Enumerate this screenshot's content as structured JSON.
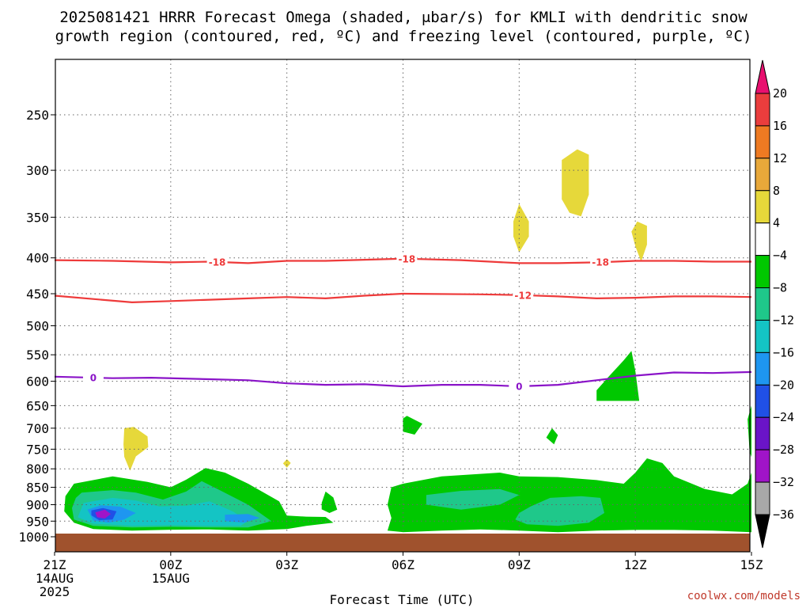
{
  "title_line1": "2025081421 HRRR Forecast Omega (shaded, μbar/s) for KMLI with dendritic snow",
  "title_line2": "growth region (contoured, red, ºC) and freezing level (contoured, purple, ºC)",
  "credit": "coolwx.com/models",
  "chart_data": {
    "type": "time-height cross section",
    "title": "2025081421 HRRR Forecast Omega (shaded, μbar/s) for KMLI with dendritic snow growth region (contoured, red, ºC) and freezing level (contoured, purple, ºC)",
    "xlabel": "Forecast Time (UTC)",
    "xlim": [
      0,
      18
    ],
    "x_ticks": [
      {
        "x": 0,
        "label": "21Z",
        "sub1": "14AUG",
        "sub2": "2025"
      },
      {
        "x": 3,
        "label": "00Z",
        "sub1": "15AUG",
        "sub2": ""
      },
      {
        "x": 6,
        "label": "03Z",
        "sub1": "",
        "sub2": ""
      },
      {
        "x": 9,
        "label": "06Z",
        "sub1": "",
        "sub2": ""
      },
      {
        "x": 12,
        "label": "09Z",
        "sub1": "",
        "sub2": ""
      },
      {
        "x": 15,
        "label": "12Z",
        "sub1": "",
        "sub2": ""
      },
      {
        "x": 18,
        "label": "15Z",
        "sub1": "",
        "sub2": ""
      }
    ],
    "y_ticks": [
      250,
      300,
      350,
      400,
      450,
      500,
      550,
      600,
      650,
      700,
      750,
      800,
      850,
      900,
      950,
      1000
    ],
    "grid": true,
    "surface_color": "#a0522d",
    "colorbar": {
      "labels": [
        "20",
        "16",
        "12",
        "8",
        "4",
        "−4",
        "−8",
        "−12",
        "−16",
        "−20",
        "−24",
        "−28",
        "−32",
        "−36"
      ],
      "colors": [
        "#e8106f",
        "#ea3d3d",
        "#ee7a22",
        "#e8a83a",
        "#e6d83a",
        "#ffffff",
        "#00c800",
        "#1fc88a",
        "#14c4c4",
        "#1e96f0",
        "#2050e6",
        "#6a14c8",
        "#a014c8",
        "#a8a8a8",
        "#000000"
      ]
    },
    "contours": [
      {
        "name": "dendritic -18",
        "color": "#ee3a3a",
        "label": "-18",
        "points": [
          [
            0,
            403
          ],
          [
            1.5,
            404
          ],
          [
            3,
            406
          ],
          [
            4,
            405
          ],
          [
            5,
            407
          ],
          [
            6,
            404
          ],
          [
            7,
            404
          ],
          [
            9,
            401
          ],
          [
            10.5,
            403
          ],
          [
            12,
            407
          ],
          [
            13,
            407
          ],
          [
            14,
            406
          ],
          [
            15,
            404
          ],
          [
            16,
            404
          ],
          [
            17,
            405
          ],
          [
            18,
            405
          ]
        ],
        "label_x": [
          4.2,
          9.1,
          14.1
        ]
      },
      {
        "name": "dendritic -12",
        "color": "#ee3a3a",
        "label": "-12",
        "points": [
          [
            0,
            453
          ],
          [
            2,
            463
          ],
          [
            3,
            461
          ],
          [
            4,
            459
          ],
          [
            5,
            457
          ],
          [
            6,
            455
          ],
          [
            7,
            457
          ],
          [
            8,
            453
          ],
          [
            9,
            450
          ],
          [
            11,
            451
          ],
          [
            12,
            452
          ],
          [
            13,
            454
          ],
          [
            14,
            457
          ],
          [
            15,
            456
          ],
          [
            16,
            454
          ],
          [
            17,
            454
          ],
          [
            18,
            455
          ]
        ],
        "label_x": [
          12.1
        ]
      },
      {
        "name": "freezing level 0",
        "color": "#8a14c8",
        "label": "0",
        "points": [
          [
            0,
            591
          ],
          [
            1.5,
            594
          ],
          [
            2.5,
            593
          ],
          [
            4,
            596
          ],
          [
            5,
            598
          ],
          [
            6,
            604
          ],
          [
            7,
            607
          ],
          [
            8,
            606
          ],
          [
            9,
            610
          ],
          [
            10,
            607
          ],
          [
            11,
            607
          ],
          [
            12,
            610
          ],
          [
            13,
            607
          ],
          [
            14,
            598
          ],
          [
            15,
            589
          ],
          [
            16,
            583
          ],
          [
            17,
            584
          ],
          [
            18,
            582
          ]
        ],
        "label_x": [
          1.0,
          12.0
        ]
      }
    ],
    "omega_regions": [
      {
        "value_range": "4 to 8",
        "color": "#e6d83a",
        "points": [
          [
            1.8,
            700
          ],
          [
            2.05,
            697
          ],
          [
            2.4,
            719
          ],
          [
            2.42,
            745
          ],
          [
            2.1,
            768
          ],
          [
            1.95,
            805
          ],
          [
            1.8,
            769
          ],
          [
            1.78,
            738
          ]
        ]
      },
      {
        "value_range": "4 to 8",
        "color": "#e6d83a",
        "points": [
          [
            6,
            775
          ],
          [
            6.1,
            785
          ],
          [
            6,
            797
          ],
          [
            5.9,
            786
          ]
        ]
      },
      {
        "value_range": "4 to 8",
        "color": "#e6d83a",
        "points": [
          [
            12,
            335
          ],
          [
            12.25,
            355
          ],
          [
            12.25,
            373
          ],
          [
            12,
            393
          ],
          [
            11.85,
            373
          ],
          [
            11.85,
            355
          ]
        ]
      },
      {
        "value_range": "4 to 8",
        "color": "#e6d83a",
        "points": [
          [
            13.5,
            280
          ],
          [
            13.8,
            285
          ],
          [
            13.8,
            325
          ],
          [
            13.6,
            349
          ],
          [
            13.3,
            345
          ],
          [
            13.1,
            330
          ],
          [
            13.1,
            290
          ]
        ]
      },
      {
        "value_range": "4 to 8",
        "color": "#e6d83a",
        "points": [
          [
            15.05,
            355
          ],
          [
            15.3,
            360
          ],
          [
            15.3,
            383
          ],
          [
            15.15,
            405
          ],
          [
            15,
            385
          ],
          [
            14.9,
            367
          ]
        ]
      },
      {
        "value_range": "-4 to -8",
        "color": "#00c800",
        "points": [
          [
            0.5,
            840
          ],
          [
            1.5,
            820
          ],
          [
            2.4,
            835
          ],
          [
            3,
            850
          ],
          [
            3.4,
            829
          ],
          [
            3.9,
            798
          ],
          [
            4.4,
            810
          ],
          [
            5,
            840
          ],
          [
            5.8,
            890
          ],
          [
            6,
            933
          ],
          [
            6.5,
            936
          ],
          [
            7,
            937
          ],
          [
            7.2,
            955
          ],
          [
            6.5,
            965
          ],
          [
            6,
            975
          ],
          [
            5,
            980
          ],
          [
            4,
            976
          ],
          [
            3,
            977
          ],
          [
            2,
            980
          ],
          [
            1,
            975
          ],
          [
            0.5,
            955
          ],
          [
            0.25,
            920
          ],
          [
            0.28,
            875
          ]
        ]
      },
      {
        "value_range": "-4 to -8",
        "color": "#00c800",
        "points": [
          [
            7,
            862
          ],
          [
            7.2,
            879
          ],
          [
            7.3,
            915
          ],
          [
            7.1,
            925
          ],
          [
            6.9,
            914
          ],
          [
            6.9,
            895
          ]
        ]
      },
      {
        "value_range": "-4 to -8",
        "color": "#00c800",
        "points": [
          [
            9.1,
            672
          ],
          [
            9.5,
            690
          ],
          [
            9.3,
            715
          ],
          [
            9,
            708
          ],
          [
            9,
            678
          ]
        ]
      },
      {
        "value_range": "-4 to -8",
        "color": "#00c800",
        "points": [
          [
            12.85,
            700
          ],
          [
            13,
            716
          ],
          [
            12.9,
            738
          ],
          [
            12.7,
            722
          ]
        ]
      },
      {
        "value_range": "-4 to -8",
        "color": "#00c800",
        "points": [
          [
            14.3,
            592
          ],
          [
            14.7,
            560
          ],
          [
            14.9,
            543
          ],
          [
            15,
            580
          ],
          [
            15.1,
            640
          ],
          [
            14,
            640
          ],
          [
            14,
            618
          ]
        ]
      },
      {
        "value_range": "-4 to -8",
        "color": "#00c800",
        "points": [
          [
            9,
            840
          ],
          [
            10,
            820
          ],
          [
            11.5,
            810
          ],
          [
            12,
            820
          ],
          [
            13,
            822
          ],
          [
            14,
            830
          ],
          [
            14.7,
            840
          ],
          [
            15,
            810
          ],
          [
            15.3,
            773
          ],
          [
            15.7,
            785
          ],
          [
            16,
            820
          ],
          [
            16.8,
            855
          ],
          [
            17.5,
            870
          ],
          [
            17.9,
            840
          ],
          [
            18,
            810
          ],
          [
            18,
            985
          ],
          [
            17,
            980
          ],
          [
            16,
            978
          ],
          [
            15,
            978
          ],
          [
            14,
            980
          ],
          [
            13,
            985
          ],
          [
            12,
            980
          ],
          [
            11,
            976
          ],
          [
            10,
            980
          ],
          [
            9,
            985
          ],
          [
            8.6,
            980
          ],
          [
            8.7,
            940
          ],
          [
            8.6,
            900
          ],
          [
            8.7,
            850
          ]
        ]
      },
      {
        "value_range": "-4 to -8",
        "color": "#00c800",
        "points": [
          [
            17.9,
            680
          ],
          [
            18,
            650
          ],
          [
            18,
            770
          ],
          [
            17.95,
            755
          ]
        ]
      },
      {
        "value_range": "-8 to -12",
        "color": "#1fc88a",
        "points": [
          [
            0.7,
            865
          ],
          [
            1.5,
            858
          ],
          [
            2.1,
            865
          ],
          [
            2.8,
            885
          ],
          [
            3.4,
            862
          ],
          [
            3.8,
            833
          ],
          [
            4.3,
            860
          ],
          [
            5,
            900
          ],
          [
            5.6,
            950
          ],
          [
            5,
            970
          ],
          [
            4,
            970
          ],
          [
            3,
            968
          ],
          [
            2,
            970
          ],
          [
            1,
            965
          ],
          [
            0.5,
            945
          ],
          [
            0.45,
            910
          ],
          [
            0.55,
            880
          ]
        ]
      },
      {
        "value_range": "-8 to -12",
        "color": "#1fc88a",
        "points": [
          [
            9.6,
            872
          ],
          [
            10.5,
            860
          ],
          [
            11.5,
            855
          ],
          [
            12,
            872
          ],
          [
            11.5,
            900
          ],
          [
            10.5,
            915
          ],
          [
            9.6,
            900
          ]
        ]
      },
      {
        "value_range": "-8 to -12",
        "color": "#1fc88a",
        "points": [
          [
            12.3,
            905
          ],
          [
            12.8,
            880
          ],
          [
            13.6,
            875
          ],
          [
            14.1,
            880
          ],
          [
            14.2,
            925
          ],
          [
            13.8,
            955
          ],
          [
            13,
            965
          ],
          [
            12.2,
            960
          ],
          [
            11.9,
            945
          ],
          [
            12,
            925
          ]
        ]
      },
      {
        "value_range": "-12 to -16",
        "color": "#14c4c4",
        "points": [
          [
            0.75,
            895
          ],
          [
            1.5,
            880
          ],
          [
            2.1,
            888
          ],
          [
            2.7,
            905
          ],
          [
            3.4,
            903
          ],
          [
            4,
            890
          ],
          [
            4.6,
            920
          ],
          [
            5,
            950
          ],
          [
            4.8,
            965
          ],
          [
            4,
            965
          ],
          [
            3,
            963
          ],
          [
            2,
            965
          ],
          [
            1,
            958
          ],
          [
            0.6,
            938
          ]
        ]
      },
      {
        "value_range": "-16 to -20",
        "color": "#1e96f0",
        "points": [
          [
            0.85,
            915
          ],
          [
            1.2,
            902
          ],
          [
            1.7,
            906
          ],
          [
            2.1,
            925
          ],
          [
            1.8,
            945
          ],
          [
            1.4,
            955
          ],
          [
            1,
            948
          ]
        ]
      },
      {
        "value_range": "-16 to -20",
        "color": "#1e96f0",
        "points": [
          [
            4.4,
            930
          ],
          [
            5,
            928
          ],
          [
            5.3,
            940
          ],
          [
            4.9,
            955
          ],
          [
            4.4,
            950
          ]
        ]
      },
      {
        "value_range": "-20 to -24",
        "color": "#2050e6",
        "points": [
          [
            0.95,
            917
          ],
          [
            1.25,
            910
          ],
          [
            1.6,
            920
          ],
          [
            1.5,
            945
          ],
          [
            1.15,
            947
          ],
          [
            0.95,
            932
          ]
        ]
      },
      {
        "value_range": "-28 to -32",
        "color": "#a014c8",
        "points": [
          [
            1.05,
            923
          ],
          [
            1.3,
            915
          ],
          [
            1.45,
            928
          ],
          [
            1.3,
            942
          ],
          [
            1.1,
            938
          ]
        ]
      }
    ]
  }
}
